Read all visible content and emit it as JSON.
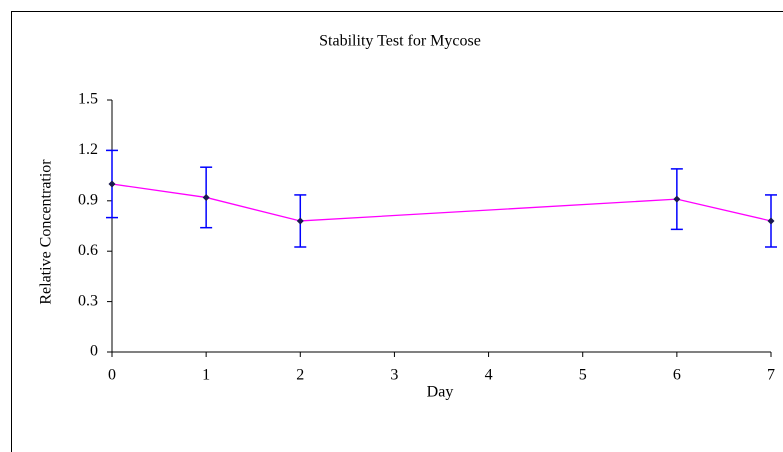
{
  "chart_data": {
    "type": "line",
    "title": "Stability Test for Mycose",
    "x_label": "Day",
    "y_label": "Relative Concentratior",
    "x": [
      0,
      1,
      2,
      6,
      7
    ],
    "series": [
      {
        "values": [
          1.0,
          0.92,
          0.78,
          0.91,
          0.78
        ],
        "errors": [
          0.2,
          0.18,
          0.155,
          0.18,
          0.155
        ],
        "color": "#ff00ff",
        "marker_color": "#1a1a4e",
        "error_color": "#0000ff"
      }
    ],
    "xlim": [
      0,
      7
    ],
    "xticks": [
      0,
      1,
      2,
      3,
      4,
      5,
      6,
      7
    ],
    "ylim": [
      0,
      1.5
    ],
    "yticks": [
      0,
      0.3,
      0.6,
      0.9,
      1.2,
      1.5
    ],
    "grid": false
  }
}
